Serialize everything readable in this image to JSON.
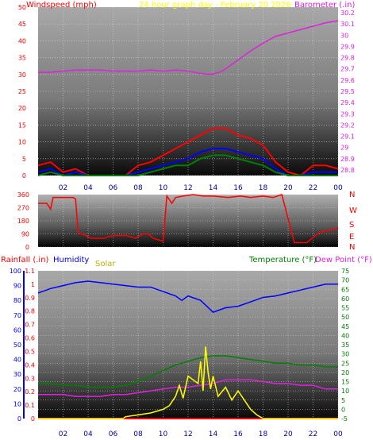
{
  "chart_data": [
    {
      "id": "wind_baro",
      "type": "line",
      "title": "24 hour graph day - February 20 2026",
      "left_axis_label": "Windspeed (mph)",
      "right_axis_label": "Barometer (.in)",
      "left_ticks": [
        "0",
        "5",
        "10",
        "15",
        "20",
        "25",
        "30",
        "35",
        "40",
        "45",
        "50"
      ],
      "right_ticks": [
        "28.8",
        "28.9",
        "29",
        "29.1",
        "29.2",
        "29.3",
        "29.4",
        "29.5",
        "29.6",
        "29.7",
        "29.8",
        "29.9",
        "30",
        "30.1",
        "30.2"
      ],
      "ylim_left": [
        0,
        50
      ],
      "ylim_right": [
        28.75,
        30.25
      ],
      "x_ticks": [
        "02",
        "04",
        "06",
        "08",
        "10",
        "12",
        "14",
        "16",
        "18",
        "20",
        "22",
        "00"
      ],
      "series": [
        {
          "key": "barometer",
          "axis": "right",
          "color": "#e020e0",
          "x": [
            0,
            1,
            2,
            3,
            4,
            5,
            6,
            7,
            8,
            9,
            10,
            11,
            12,
            13,
            13.9,
            14.5,
            15,
            16,
            17,
            18,
            19,
            20,
            21,
            22,
            23,
            24
          ],
          "y": [
            29.67,
            29.67,
            29.68,
            29.69,
            29.69,
            29.69,
            29.68,
            29.68,
            29.68,
            29.69,
            29.68,
            29.69,
            29.68,
            29.66,
            29.65,
            29.67,
            29.7,
            29.78,
            29.86,
            29.93,
            29.99,
            30.02,
            30.05,
            30.08,
            30.11,
            30.13
          ]
        },
        {
          "key": "gust",
          "axis": "left",
          "color": "#ff0000",
          "x": [
            0,
            1,
            2,
            3,
            4,
            5,
            6,
            7,
            8,
            9,
            10,
            11,
            12,
            13,
            14,
            15,
            16,
            17,
            18,
            19,
            20,
            21,
            22,
            23,
            24
          ],
          "y": [
            3,
            4,
            1,
            2,
            0,
            0,
            0,
            0,
            3,
            4,
            6,
            8,
            10,
            12,
            14,
            14,
            12,
            11,
            9,
            4,
            1,
            0,
            3,
            3,
            2
          ]
        },
        {
          "key": "wind_avg",
          "axis": "left",
          "color": "#0000ff",
          "x": [
            0,
            1,
            2,
            3,
            4,
            5,
            6,
            7,
            8,
            9,
            10,
            11,
            12,
            13,
            14,
            15,
            16,
            17,
            18,
            19,
            20,
            21,
            22,
            23,
            24
          ],
          "y": [
            1,
            2,
            0,
            1,
            0,
            0,
            0,
            0,
            1,
            2,
            3,
            4,
            5,
            7,
            8,
            8,
            7,
            6,
            5,
            2,
            0,
            0,
            1,
            1,
            1
          ]
        },
        {
          "key": "wind_low",
          "axis": "left",
          "color": "#008000",
          "x": [
            0,
            1,
            2,
            3,
            4,
            5,
            6,
            7,
            8,
            9,
            10,
            11,
            12,
            13,
            14,
            15,
            16,
            17,
            18,
            19,
            20,
            21,
            22,
            23,
            24
          ],
          "y": [
            0,
            1,
            0,
            0,
            0,
            0,
            0,
            0,
            0,
            1,
            2,
            3,
            3,
            5,
            6,
            6,
            5,
            4,
            3,
            1,
            0,
            0,
            0,
            0,
            0
          ]
        }
      ]
    },
    {
      "id": "direction",
      "type": "line",
      "left_ticks": [
        "0",
        "90",
        "180",
        "270",
        "360"
      ],
      "right_labels": [
        "N",
        "W",
        "S",
        "E",
        "N"
      ],
      "ylim": [
        0,
        360
      ],
      "series": [
        {
          "key": "wind_direction",
          "color": "#ff0000",
          "x": [
            0,
            0.7,
            1,
            1.2,
            2.8,
            3.0,
            3.2,
            3.8,
            4.2,
            5.3,
            5.6,
            6.2,
            7.0,
            7.8,
            8.4,
            8.8,
            9.2,
            10.0,
            10.3,
            10.7,
            11.0,
            11.6,
            12.4,
            13.2,
            14.0,
            15.2,
            16.2,
            17.0,
            18.0,
            18.8,
            19.5,
            20.5,
            21.5,
            22.5,
            23.0,
            23.5,
            24
          ],
          "y": [
            300,
            300,
            260,
            340,
            340,
            330,
            100,
            80,
            60,
            60,
            70,
            80,
            80,
            60,
            90,
            90,
            60,
            40,
            350,
            300,
            340,
            350,
            360,
            350,
            350,
            340,
            350,
            340,
            350,
            340,
            360,
            30,
            30,
            100,
            110,
            120,
            130
          ]
        }
      ]
    },
    {
      "id": "rain_hum_temp",
      "type": "line",
      "left_axis_label": "Rainfall (.in)",
      "left2_axis_label": "Humidity",
      "solar_label": "Solar",
      "right_axis_label": "Temperature (°F)",
      "right2_axis_label": "Dew Point (°F)",
      "rain_ticks": [
        "0",
        "0.1",
        "0.2",
        "0.3",
        "0.4",
        "0.5",
        "0.6",
        "0.7",
        "0.8",
        "0.9",
        "1",
        "1.1"
      ],
      "humidity_ticks": [
        "0",
        "10",
        "20",
        "30",
        "40",
        "50",
        "60",
        "70",
        "80",
        "90",
        "100"
      ],
      "temp_ticks": [
        "-5",
        "0",
        "5",
        "10",
        "15",
        "20",
        "25",
        "30",
        "35",
        "40",
        "45",
        "50",
        "55",
        "60",
        "65",
        "70",
        "75"
      ],
      "ylim_rain": [
        0,
        1.1
      ],
      "ylim_humidity": [
        0,
        100
      ],
      "ylim_temp": [
        -5,
        75
      ],
      "series": [
        {
          "key": "humidity",
          "axis": "humidity",
          "color": "#0000ff",
          "x": [
            0,
            1,
            2,
            3,
            4,
            5,
            6,
            7,
            8,
            9,
            10,
            11,
            11.5,
            12,
            13,
            14,
            15,
            16,
            17,
            18,
            19,
            20,
            21,
            22,
            23,
            24
          ],
          "y": [
            85,
            88,
            90,
            92,
            93,
            92,
            91,
            90,
            89,
            89,
            86,
            83,
            80,
            83,
            80,
            72,
            75,
            76,
            79,
            82,
            83,
            85,
            87,
            89,
            91,
            91
          ]
        },
        {
          "key": "temperature",
          "axis": "temp",
          "color": "#008000",
          "x": [
            0,
            1,
            2,
            3,
            4,
            5,
            6,
            7,
            8,
            9,
            10,
            11,
            12,
            13,
            14,
            15,
            16,
            17,
            18,
            19,
            20,
            21,
            22,
            23,
            24
          ],
          "y": [
            14,
            14,
            13,
            13,
            12,
            12,
            12,
            13,
            15,
            18,
            21,
            24,
            26,
            28,
            29,
            29,
            28,
            27,
            26,
            25,
            25,
            24,
            24,
            23,
            23
          ]
        },
        {
          "key": "dew_point",
          "axis": "temp",
          "color": "#e020e0",
          "x": [
            0,
            1,
            2,
            3,
            4,
            5,
            6,
            7,
            8,
            9,
            10,
            11,
            12,
            13,
            14,
            15,
            16,
            17,
            18,
            19,
            20,
            21,
            22,
            23,
            24
          ],
          "y": [
            8,
            8,
            8,
            7,
            7,
            7,
            8,
            8,
            9,
            10,
            11,
            12,
            12,
            13,
            14,
            16,
            16,
            16,
            15,
            14,
            14,
            13,
            13,
            11,
            11
          ]
        },
        {
          "key": "rainfall",
          "axis": "rain",
          "color": "#ff0000",
          "x": [
            0,
            24
          ],
          "y": [
            0,
            0
          ]
        },
        {
          "key": "solar",
          "axis": "temp",
          "color": "#ffff00",
          "x": [
            0,
            6.8,
            7,
            8,
            9,
            10,
            10.5,
            11,
            11.3,
            11.6,
            12,
            12.4,
            12.8,
            13.0,
            13.2,
            13.4,
            13.6,
            13.8,
            14.0,
            14.4,
            15,
            15.5,
            16,
            16.5,
            17,
            17.5,
            18,
            24
          ],
          "y": [
            -5,
            -5,
            -4,
            -3,
            -2,
            0,
            2,
            7,
            13,
            6,
            18,
            16,
            14,
            26,
            10,
            34,
            20,
            11,
            18,
            7,
            12,
            5,
            10,
            5,
            0,
            -3,
            -5,
            -5
          ]
        }
      ]
    }
  ],
  "x_ticks_bottom": [
    "02",
    "04",
    "06",
    "08",
    "10",
    "12",
    "14",
    "16",
    "18",
    "20",
    "22",
    "00"
  ]
}
